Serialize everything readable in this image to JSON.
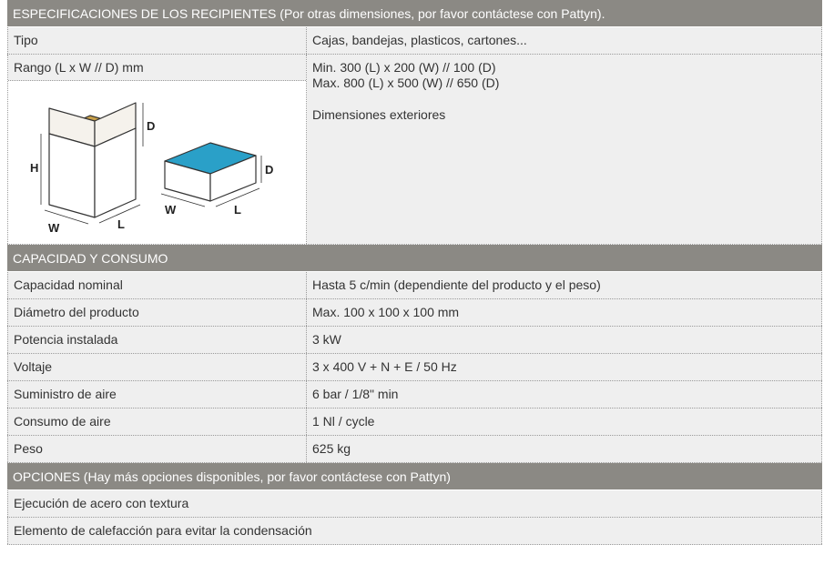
{
  "sections": [
    {
      "title": "ESPECIFICACIONES DE LOS RECIPIENTES (Por otras dimensiones, por favor contáctese con Pattyn).",
      "rows": [
        [
          "Tipo",
          "Cajas, bandejas, plasticos, cartones..."
        ]
      ],
      "range_row": {
        "label": "Rango (L x W // D) mm",
        "lines": [
          "Min. 300 (L) x 200 (W) // 100 (D)",
          "Max. 800 (L) x 500 (W) // 650 (D)",
          "Dimensiones exteriores"
        ]
      },
      "figure_labels": [
        "H",
        "D",
        "W",
        "L",
        "D",
        "W",
        "L"
      ]
    },
    {
      "title": "CAPACIDAD Y CONSUMO",
      "rows": [
        [
          "Capacidad nominal",
          "Hasta  5 c/min (dependiente del producto y el peso)"
        ],
        [
          "Diámetro del producto",
          "Max. 100 x 100 x 100 mm"
        ],
        [
          "Potencia instalada",
          "3 kW"
        ],
        [
          "Voltaje",
          "3 x 400 V + N + E / 50 Hz"
        ],
        [
          "Suministro de aire",
          "6 bar / 1/8\" min"
        ],
        [
          "Consumo de aire",
          "1 Nl / cycle"
        ],
        [
          "Peso",
          "625 kg"
        ]
      ]
    },
    {
      "title": "OPCIONES (Hay más opciones disponibles, por favor contáctese con Pattyn)",
      "options": [
        "Ejecución de acero con textura",
        "Elemento de calefacción para evitar la condensación"
      ]
    }
  ]
}
